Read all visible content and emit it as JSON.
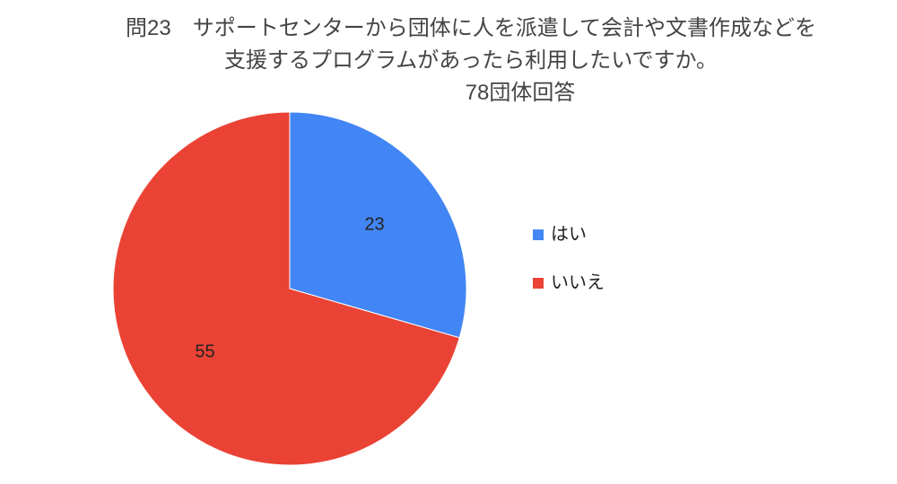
{
  "chart_data": {
    "type": "pie",
    "title": "問23　サポートセンターから団体に人を派遣して会計や文書作成などを支援するプログラムがあったら利用したいですか。",
    "subtitle": "78団体回答",
    "categories": [
      "はい",
      "いいえ"
    ],
    "values": [
      23,
      55
    ],
    "colors": [
      "#4285f4",
      "#ea4335"
    ],
    "legend": "right"
  }
}
